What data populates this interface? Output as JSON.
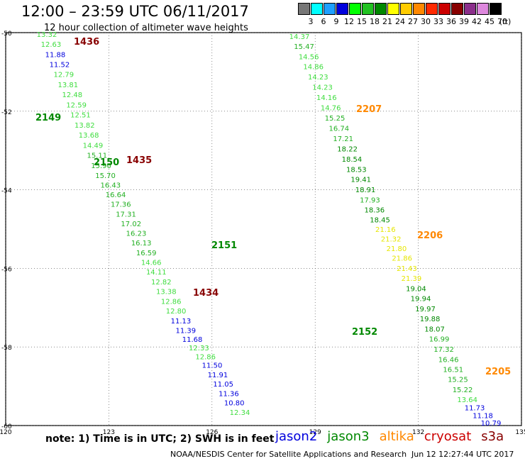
{
  "header": {
    "title": "12:00 – 23:59 UTC 06/11/2017",
    "subtitle": "12 hour collection of altimeter wave heights"
  },
  "scale": {
    "unit": "(ft)",
    "bins": [
      {
        "label": "3",
        "color": "#777777"
      },
      {
        "label": "6",
        "color": "#00ffff"
      },
      {
        "label": "9",
        "color": "#1ea0ff"
      },
      {
        "label": "12",
        "color": "#0000dd"
      },
      {
        "label": "15",
        "color": "#00ff00"
      },
      {
        "label": "18",
        "color": "#22c222"
      },
      {
        "label": "21",
        "color": "#008800"
      },
      {
        "label": "24",
        "color": "#ffff00"
      },
      {
        "label": "27",
        "color": "#ffcc00"
      },
      {
        "label": "30",
        "color": "#ff8800"
      },
      {
        "label": "33",
        "color": "#ff2a00"
      },
      {
        "label": "36",
        "color": "#cc0000"
      },
      {
        "label": "39",
        "color": "#880000"
      },
      {
        "label": "42",
        "color": "#8b2f8b"
      },
      {
        "label": "45",
        "color": "#dd88dd"
      },
      {
        "label": "70",
        "color": "#000000"
      }
    ]
  },
  "axes": {
    "lat_labels": [
      "-50",
      "-52",
      "-54",
      "-56",
      "-58",
      "-60"
    ],
    "lon_labels": [
      "120",
      "123",
      "126",
      "129",
      "132",
      "135"
    ]
  },
  "tracks": [
    {
      "name": "track-1436",
      "time": "1436",
      "time_color": "#880000",
      "values": [
        "13.32",
        "12.63",
        "11.88",
        "11.52",
        "12.79",
        "13.81",
        "12.48",
        "12.59",
        "12.51",
        "13.82",
        "13.68",
        "14.49",
        "15.11",
        "15.90",
        "15.70",
        "16.43",
        "16.64",
        "17.36",
        "17.31",
        "17.02",
        "16.23",
        "16.13",
        "16.59",
        "14.66",
        "14.11",
        "12.82",
        "13.38",
        "12.86",
        "12.80",
        "11.13",
        "11.39",
        "11.68",
        "12.33",
        "12.86",
        "11.50",
        "11.91",
        "11.05",
        "11.36",
        "10.80",
        "12.34"
      ]
    },
    {
      "name": "track-1435",
      "time": "1435",
      "time_color": "#880000",
      "values": []
    },
    {
      "name": "track-1434",
      "time": "1434",
      "time_color": "#880000",
      "values": []
    },
    {
      "name": "track-2149",
      "time": "2149",
      "time_color": "#008800",
      "values": []
    },
    {
      "name": "track-2150",
      "time": "2150",
      "time_color": "#008800",
      "values": []
    },
    {
      "name": "track-2151",
      "time": "2151",
      "time_color": "#008800",
      "values": []
    },
    {
      "name": "track-2152",
      "time": "2152",
      "time_color": "#008800",
      "values": []
    },
    {
      "name": "track-2207",
      "time": "2207",
      "time_color": "#ff8800",
      "values": [
        "14.37",
        "15.47",
        "14.56",
        "14.86",
        "14.23",
        "14.23",
        "14.16",
        "14.76",
        "15.25",
        "16.74",
        "17.21",
        "18.22",
        "18.54",
        "18.53",
        "19.41",
        "18.91",
        "17.93",
        "18.36",
        "18.45",
        "21.16",
        "21.32",
        "21.80",
        "21.86",
        "21.43",
        "21.39",
        "19.04",
        "19.94",
        "19.97",
        "19.88",
        "18.07",
        "16.99",
        "17.32",
        "16.46",
        "16.51",
        "15.25",
        "15.22",
        "13.64",
        "11.73",
        "11.18",
        "10.79"
      ]
    },
    {
      "name": "track-2206",
      "time": "2206",
      "time_color": "#ff8800",
      "values": []
    },
    {
      "name": "track-2205",
      "time": "2205",
      "time_color": "#ff8800",
      "values": []
    }
  ],
  "note": "note:  1) Time is in UTC;  2) SWH is in feet",
  "satellites": [
    {
      "name": "jason2",
      "color": "#0000dd"
    },
    {
      "name": "jason3",
      "color": "#008800"
    },
    {
      "name": "altika",
      "color": "#ff8800"
    },
    {
      "name": "cryosat",
      "color": "#cc0000"
    },
    {
      "name": "s3a",
      "color": "#880000"
    }
  ],
  "footer": {
    "org": "NOAA/NESDIS Center for Satellite Applications and Research",
    "timestamp": "Jun 12 12:27:44 UTC 2017"
  }
}
